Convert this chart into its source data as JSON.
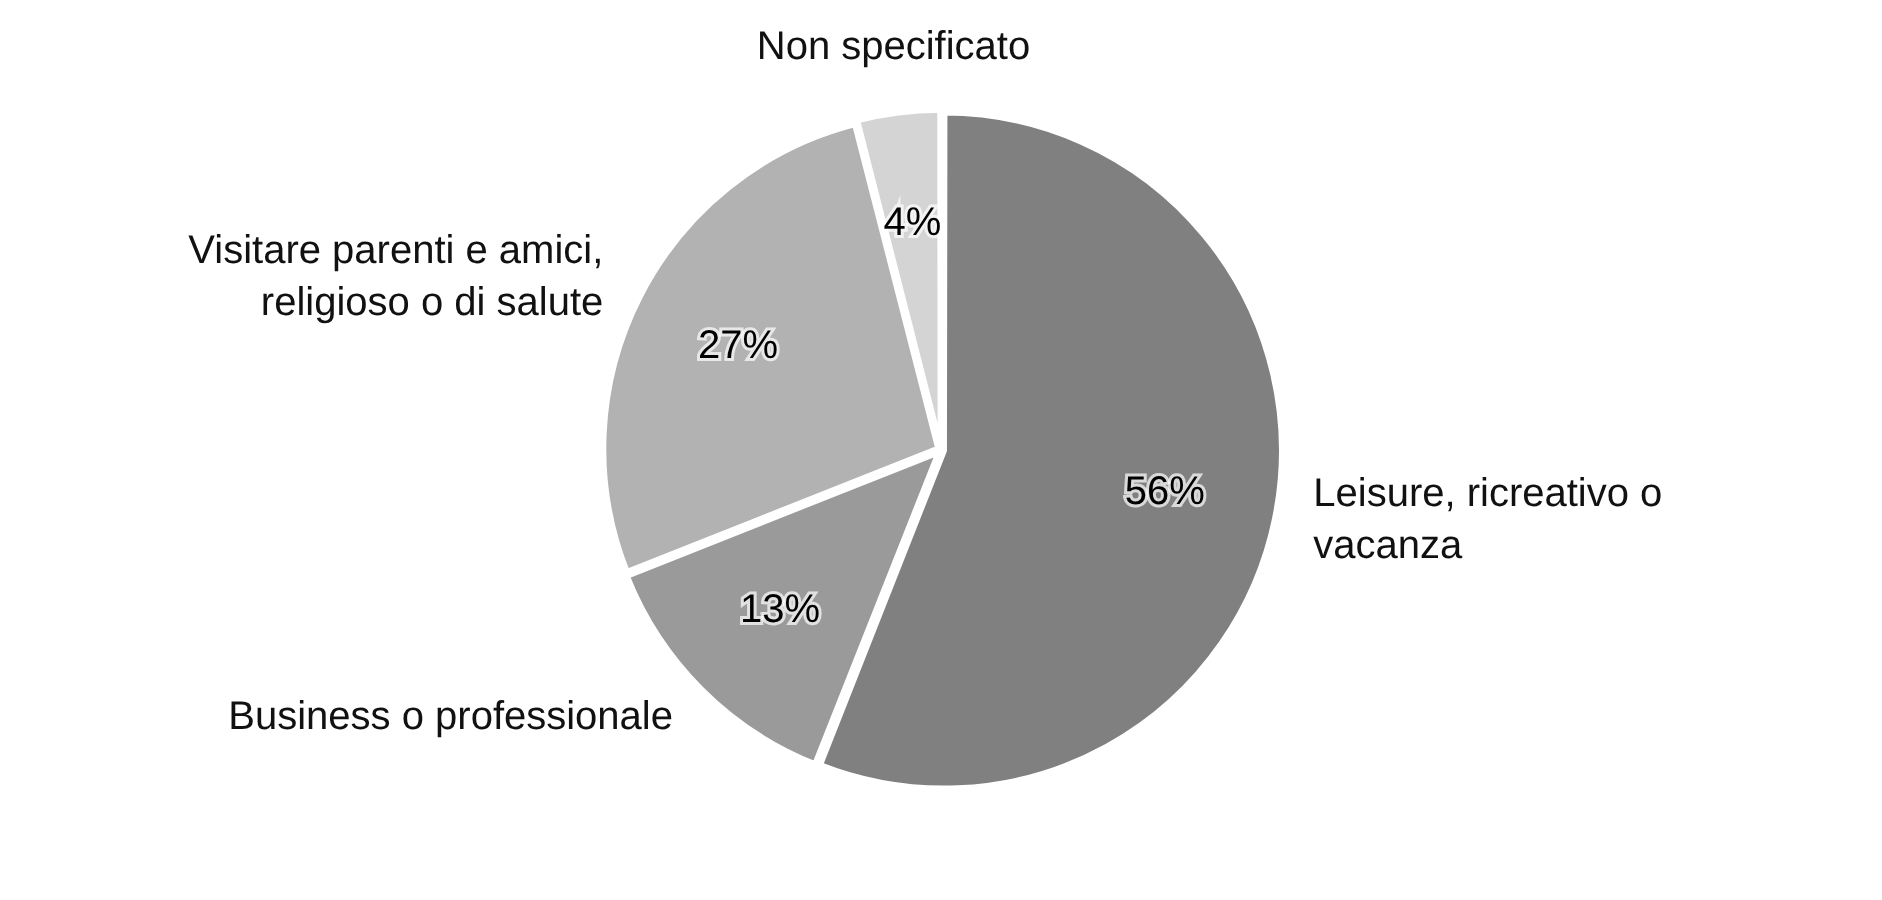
{
  "chart_data": {
    "type": "pie",
    "categories": [
      "Leisure, ricreativo o vacanza",
      "Business o professionale",
      "Visitare parenti e amici, religioso o di salute",
      "Non specificato"
    ],
    "values": [
      56,
      13,
      27,
      4
    ],
    "value_labels": [
      "56%",
      "13%",
      "27%",
      "4%"
    ],
    "colors": [
      "#808080",
      "#9a9a9a",
      "#b2b2b2",
      "#d4d4d4"
    ],
    "legend": false
  }
}
